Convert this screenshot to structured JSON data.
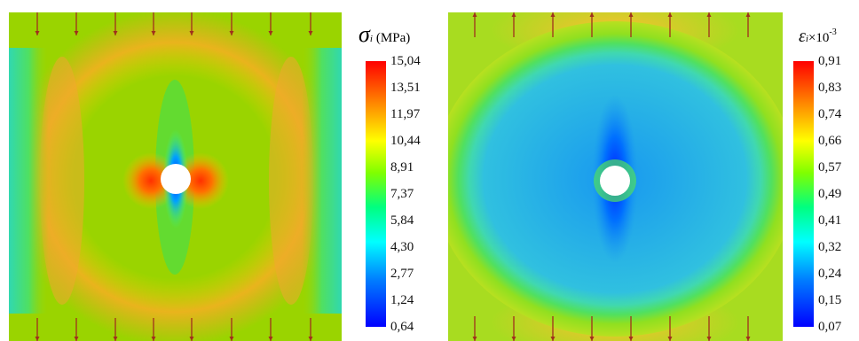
{
  "left_panel": {
    "legend_symbol": "σ",
    "legend_subscript": "i",
    "legend_unit": "(MPa)",
    "ticks": [
      "15,04",
      "13,51",
      "11,97",
      "10,44",
      "8,91",
      "7,37",
      "5,84",
      "4,30",
      "2,77",
      "1,24",
      "0,64"
    ]
  },
  "right_panel": {
    "legend_symbol": "ε",
    "legend_subscript": "i",
    "legend_multiplier": "×10",
    "legend_exponent": "-3",
    "ticks": [
      "0,91",
      "0,83",
      "0,74",
      "0,66",
      "0,57",
      "0,49",
      "0,41",
      "0,32",
      "0,24",
      "0,15",
      "0,07"
    ]
  },
  "colors": {
    "scale": [
      "#0000ff",
      "#0080ff",
      "#00ffff",
      "#00ff80",
      "#80ff00",
      "#ffff00",
      "#ff8000",
      "#ff0000"
    ],
    "arrow": "#a0301c",
    "hole": "#ffffff"
  }
}
